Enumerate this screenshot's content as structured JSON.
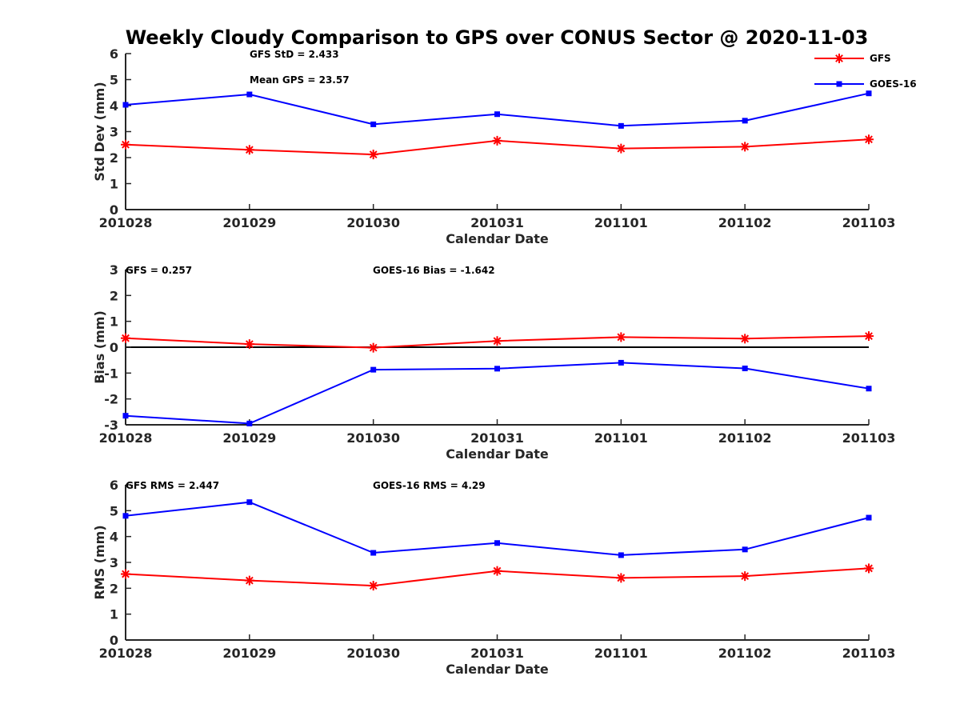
{
  "title": "Weekly Cloudy Comparison to GPS over CONUS Sector @ 2020-11-03",
  "legend": {
    "placement": "top-right",
    "entries": [
      {
        "label": "GFS",
        "color": "#ff0000",
        "marker": "asterisk"
      },
      {
        "label": "GOES-16",
        "color": "#0000ff",
        "marker": "square"
      }
    ]
  },
  "chart_data": [
    {
      "type": "line",
      "xlabel": "Calendar Date",
      "ylabel": "Std Dev (mm)",
      "ylim": [
        0,
        6
      ],
      "yticks": [
        "0",
        "1",
        "2",
        "3",
        "4",
        "5",
        "6"
      ],
      "categories": [
        "201028",
        "201029",
        "201030",
        "201031",
        "201101",
        "201102",
        "201103"
      ],
      "zero_line": false,
      "annotations": [
        {
          "text": "GFS StD = 2.433",
          "anchor": "upper-left-center"
        },
        {
          "text": "Mean GPS = 23.57",
          "anchor": "upper-left-center-2"
        }
      ],
      "series": [
        {
          "name": "GFS",
          "color": "#ff0000",
          "marker": "asterisk",
          "values": [
            2.5,
            2.3,
            2.12,
            2.65,
            2.35,
            2.42,
            2.7
          ]
        },
        {
          "name": "GOES-16",
          "color": "#0000ff",
          "marker": "square",
          "values": [
            4.03,
            4.43,
            3.28,
            3.67,
            3.22,
            3.42,
            4.47
          ]
        }
      ]
    },
    {
      "type": "line",
      "xlabel": "Calendar Date",
      "ylabel": "Bias (mm)",
      "ylim": [
        -3,
        3
      ],
      "yticks": [
        "-3",
        "-2",
        "-1",
        "0",
        "1",
        "2",
        "3"
      ],
      "categories": [
        "201028",
        "201029",
        "201030",
        "201031",
        "201101",
        "201102",
        "201103"
      ],
      "zero_line": true,
      "annotations": [
        {
          "text": "GFS = 0.257",
          "anchor": "upper-left"
        },
        {
          "text": "GOES-16 Bias  = -1.642",
          "anchor": "upper-center"
        }
      ],
      "series": [
        {
          "name": "GFS",
          "color": "#ff0000",
          "marker": "asterisk",
          "values": [
            0.35,
            0.12,
            -0.02,
            0.24,
            0.39,
            0.33,
            0.43
          ]
        },
        {
          "name": "GOES-16",
          "color": "#0000ff",
          "marker": "square",
          "values": [
            -2.65,
            -2.95,
            -0.87,
            -0.83,
            -0.6,
            -0.82,
            -1.6
          ]
        }
      ]
    },
    {
      "type": "line",
      "xlabel": "Calendar Date",
      "ylabel": "RMS (mm)",
      "ylim": [
        0,
        6
      ],
      "yticks": [
        "0",
        "1",
        "2",
        "3",
        "4",
        "5",
        "6"
      ],
      "categories": [
        "201028",
        "201029",
        "201030",
        "201031",
        "201101",
        "201102",
        "201103"
      ],
      "zero_line": false,
      "annotations": [
        {
          "text": "GFS RMS = 2.447",
          "anchor": "upper-left"
        },
        {
          "text": "GOES-16 RMS = 4.29",
          "anchor": "upper-center"
        }
      ],
      "series": [
        {
          "name": "GFS",
          "color": "#ff0000",
          "marker": "asterisk",
          "values": [
            2.55,
            2.3,
            2.1,
            2.67,
            2.4,
            2.47,
            2.77
          ]
        },
        {
          "name": "GOES-16",
          "color": "#0000ff",
          "marker": "square",
          "values": [
            4.8,
            5.33,
            3.37,
            3.75,
            3.28,
            3.5,
            4.73
          ]
        }
      ]
    }
  ]
}
